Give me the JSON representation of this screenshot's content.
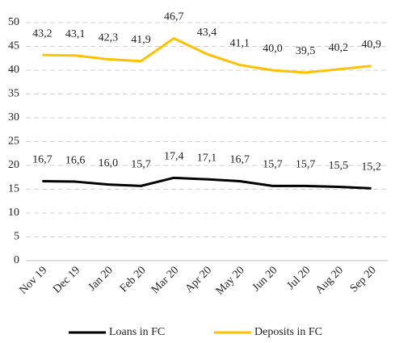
{
  "chart_data": {
    "type": "line",
    "categories": [
      "Nov 19",
      "Dec 19",
      "Jan 20",
      "Feb 20",
      "Mar 20",
      "Apr 20",
      "May 20",
      "Jun 20",
      "Jul 20",
      "Aug 20",
      "Sep 20"
    ],
    "series": [
      {
        "name": "Loans in FC",
        "color": "#000000",
        "values": [
          16.7,
          16.6,
          16.0,
          15.7,
          17.4,
          17.1,
          16.7,
          15.7,
          15.7,
          15.5,
          15.2
        ],
        "value_labels": [
          "16,7",
          "16,6",
          "16,0",
          "15,7",
          "17,4",
          "17,1",
          "16,7",
          "15,7",
          "15,7",
          "15,5",
          "15,2"
        ]
      },
      {
        "name": "Deposits in FC",
        "color": "#ffc000",
        "values": [
          43.2,
          43.1,
          42.3,
          41.9,
          46.7,
          43.4,
          41.1,
          40.0,
          39.5,
          40.2,
          40.9
        ],
        "value_labels": [
          "43,2",
          "43,1",
          "42,3",
          "41,9",
          "46,7",
          "43,4",
          "41,1",
          "40,0",
          "39,5",
          "40,2",
          "40,9"
        ]
      }
    ],
    "ylim": [
      0,
      50
    ],
    "yticks": [
      0,
      5,
      10,
      15,
      20,
      25,
      30,
      35,
      40,
      45,
      50
    ],
    "grid": true,
    "legend": "bottom"
  }
}
